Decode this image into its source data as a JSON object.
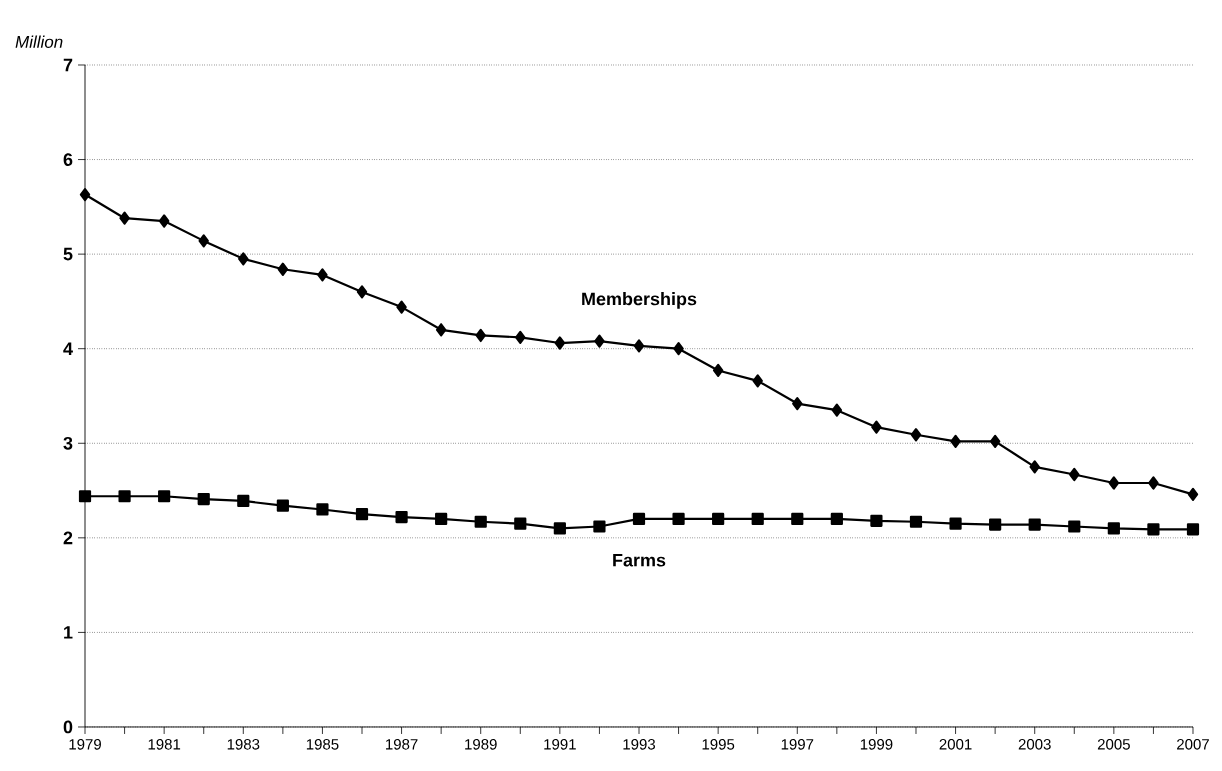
{
  "chart_data": {
    "type": "line",
    "ylabel": "Million",
    "x": [
      1979,
      1980,
      1981,
      1982,
      1983,
      1984,
      1985,
      1986,
      1987,
      1988,
      1989,
      1990,
      1991,
      1992,
      1993,
      1994,
      1995,
      1996,
      1997,
      1998,
      1999,
      2000,
      2001,
      2002,
      2003,
      2004,
      2005,
      2006,
      2007
    ],
    "series": [
      {
        "name": "Memberships",
        "color": "#000000",
        "marker": "diamond",
        "values": [
          5.63,
          5.38,
          5.35,
          5.14,
          4.95,
          4.84,
          4.78,
          4.6,
          4.44,
          4.2,
          4.14,
          4.12,
          4.06,
          4.08,
          4.03,
          4.0,
          3.77,
          3.66,
          3.42,
          3.35,
          3.17,
          3.09,
          3.02,
          3.02,
          2.75,
          2.67,
          2.58,
          2.58,
          2.46
        ]
      },
      {
        "name": "Farms",
        "color": "#000000",
        "marker": "square",
        "values": [
          2.44,
          2.44,
          2.44,
          2.41,
          2.39,
          2.34,
          2.3,
          2.25,
          2.22,
          2.2,
          2.17,
          2.15,
          2.1,
          2.12,
          2.2,
          2.2,
          2.2,
          2.2,
          2.2,
          2.2,
          2.18,
          2.17,
          2.15,
          2.14,
          2.14,
          2.12,
          2.1,
          2.09,
          2.09
        ]
      }
    ],
    "xlim": [
      1979,
      2007
    ],
    "xticks": [
      1979,
      {
        "value": 1980,
        "label": null
      },
      1981,
      {
        "value": 1982,
        "label": null
      },
      1983,
      {
        "value": 1984,
        "label": null
      },
      1985,
      {
        "value": 1986,
        "label": null
      },
      1987,
      {
        "value": 1988,
        "label": null
      },
      1989,
      {
        "value": 1990,
        "label": null
      },
      1991,
      {
        "value": 1992,
        "label": null
      },
      1993,
      {
        "value": 1994,
        "label": null
      },
      1995,
      {
        "value": 1996,
        "label": null
      },
      1997,
      {
        "value": 1998,
        "label": null
      },
      1999,
      {
        "value": 2000,
        "label": null
      },
      2001,
      {
        "value": 2002,
        "label": null
      },
      2003,
      {
        "value": 2004,
        "label": null
      },
      2005,
      {
        "value": 2006,
        "label": null
      },
      2007
    ],
    "ylim": [
      0,
      7
    ],
    "yticks": [
      0,
      1,
      2,
      3,
      4,
      5,
      6,
      7
    ],
    "grid": "y",
    "line_style": "solid",
    "legend": false
  }
}
